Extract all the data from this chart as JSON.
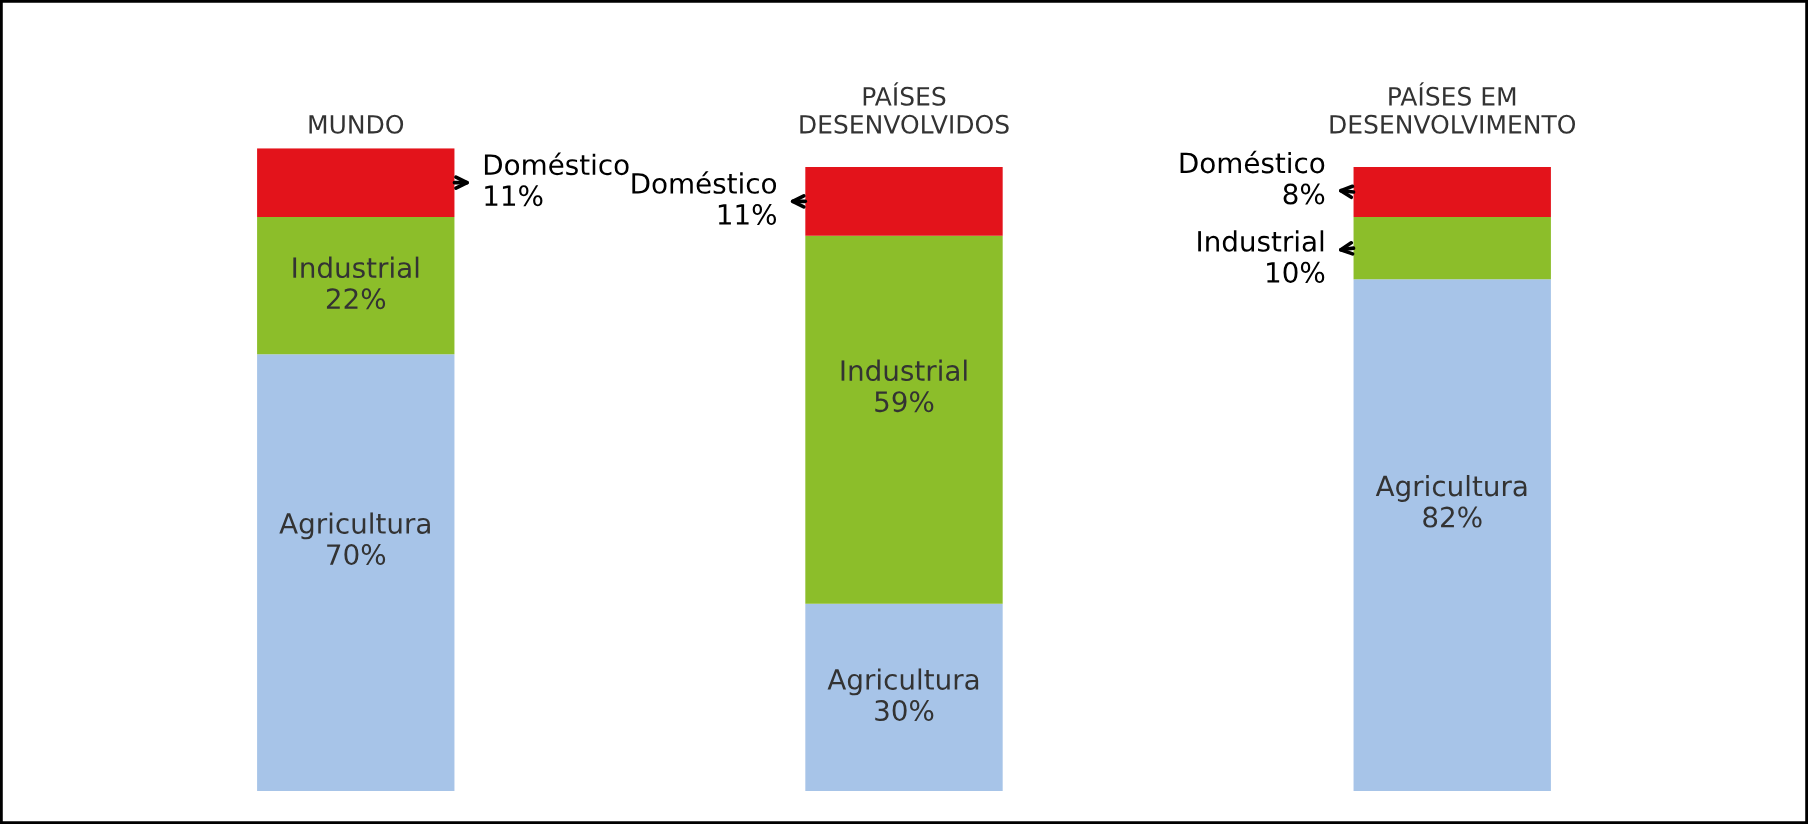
{
  "chart_data": {
    "type": "bar",
    "stacked": true,
    "categories": [
      "MUNDO",
      "PAÍSES\nDESENVOLVIDOS",
      "PAÍSES EM\nDESENVOLVIMENTO"
    ],
    "series": [
      {
        "name": "Agricultura",
        "color": "#a7c4e8",
        "values": [
          70,
          30,
          82
        ],
        "value_labels": [
          "70%",
          "30%",
          "82%"
        ]
      },
      {
        "name": "Industrial",
        "color": "#8cbe2a",
        "values": [
          22,
          59,
          10
        ],
        "value_labels": [
          "22%",
          "59%",
          "10%"
        ]
      },
      {
        "name": "Doméstico",
        "color": "#e3131b",
        "values": [
          11,
          11,
          8
        ],
        "value_labels": [
          "11%",
          "11%",
          "8%"
        ]
      }
    ],
    "grid": false,
    "legend": false
  }
}
